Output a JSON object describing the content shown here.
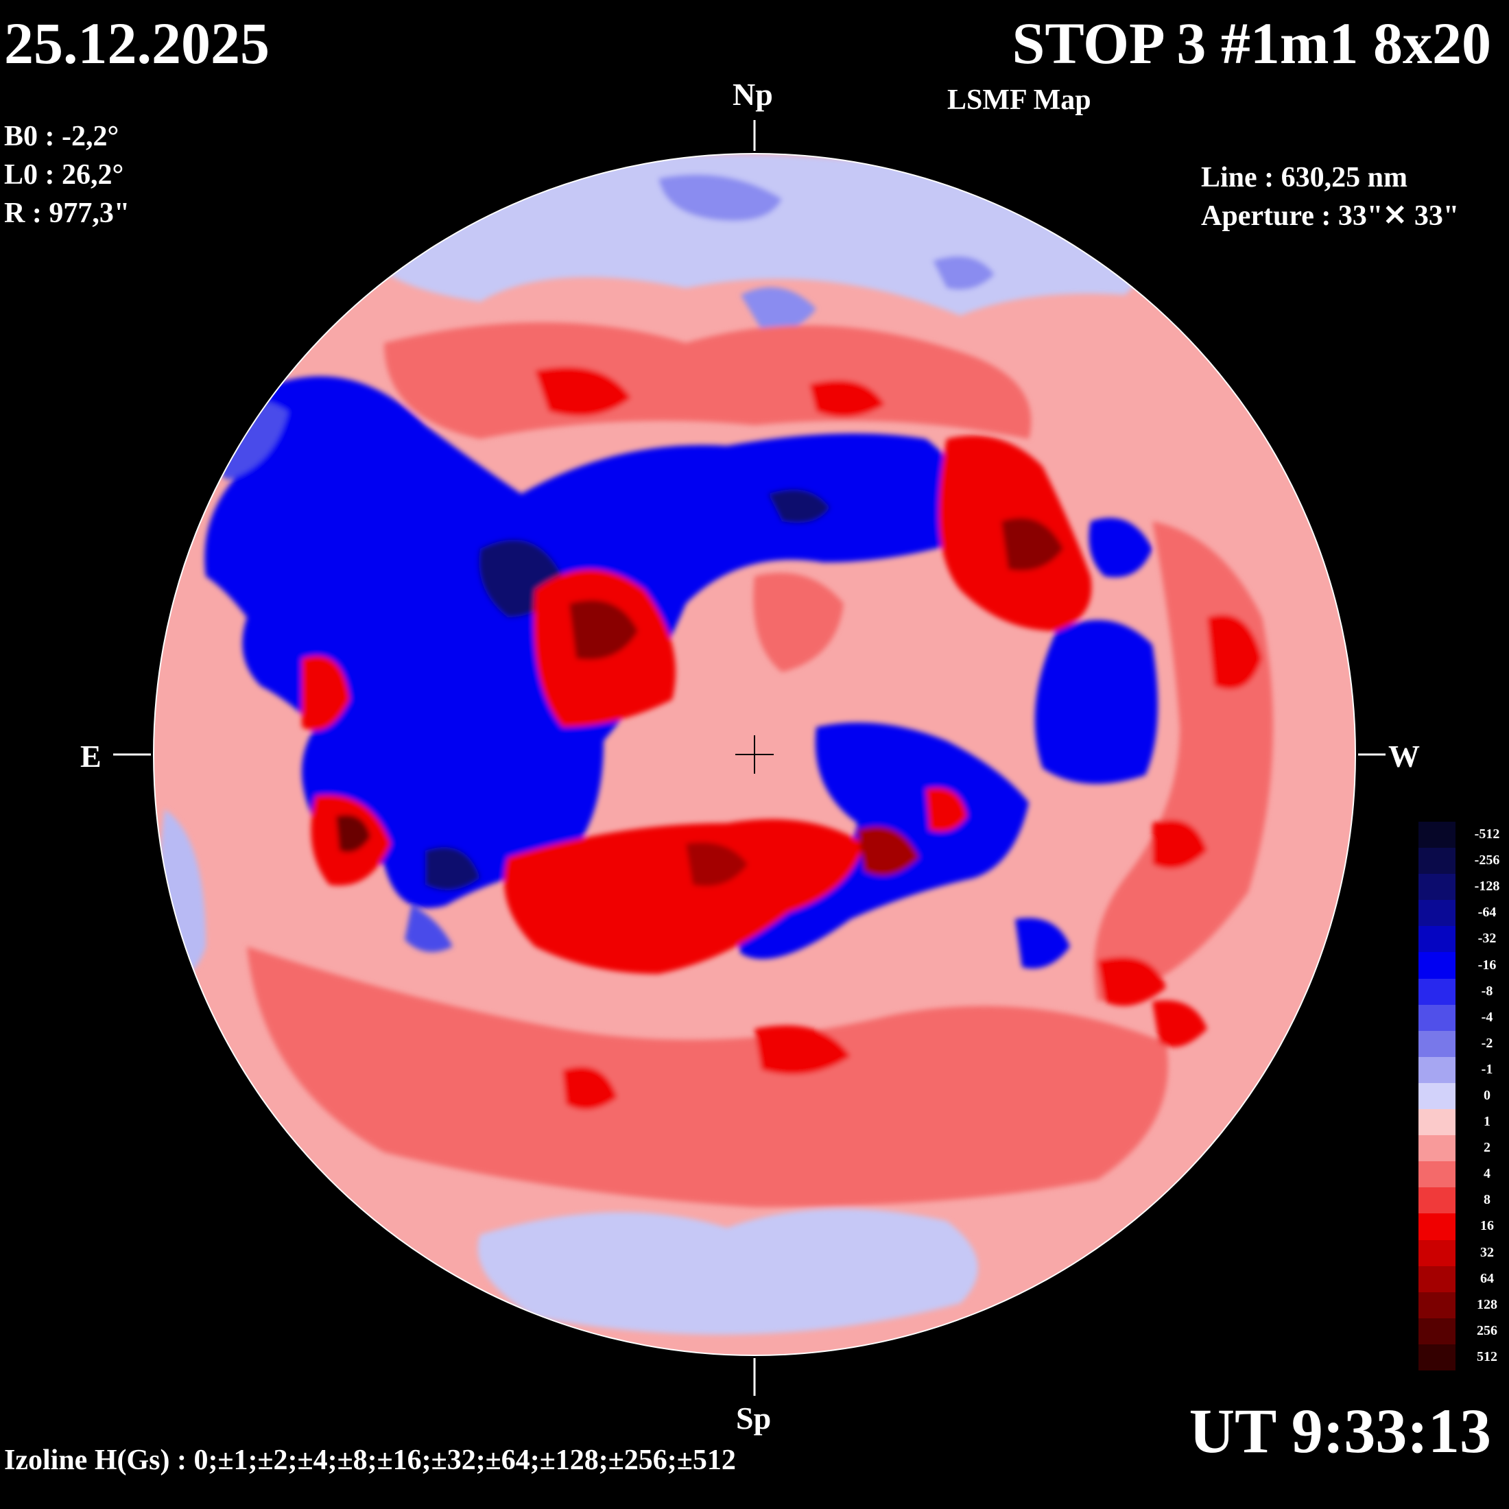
{
  "header": {
    "date": "25.12.2025",
    "title": "STOP 3 #1m1 8x20",
    "subtitle": "LSMF  Map"
  },
  "parameters": {
    "b0": "B0 : -2,2°",
    "l0": "L0 : 26,2°",
    "r": "R  : 977,3\""
  },
  "instrument": {
    "line": "Line :  630,25 nm",
    "aperture": "Aperture : 33\"✕ 33\""
  },
  "directions": {
    "north": "Np",
    "south": "Sp",
    "east": "E",
    "west": "W"
  },
  "time": "UT 9:33:13",
  "isolines": "Izoline H(Gs) : 0;±1;±2;±4;±8;±16;±32;±64;±128;±256;±512",
  "colorbar": {
    "labels": [
      "-512",
      "-256",
      "-128",
      "-64",
      "-32",
      "-16",
      "-8",
      "-4",
      "-2",
      "-1",
      "0",
      "1",
      "2",
      "4",
      "8",
      "16",
      "32",
      "64",
      "128",
      "256",
      "512"
    ],
    "colors": [
      "#060628",
      "#0a0a4a",
      "#0c0c6e",
      "#0a0a96",
      "#0505c2",
      "#0000f2",
      "#2828ee",
      "#5050ea",
      "#7878ea",
      "#a6a6f2",
      "#d2d2fa",
      "#fbcaca",
      "#f89a9a",
      "#f46a6a",
      "#f03a3a",
      "#f00000",
      "#cc0000",
      "#a40000",
      "#7c0000",
      "#560000",
      "#340000"
    ]
  },
  "map_colors": {
    "blue_weak": "#c6c8f6",
    "blue_mid": "#6e70ee",
    "blue_strong": "#0000f2",
    "blue_deep": "#0a0a78",
    "red_weak": "#fbcaca",
    "red_mid": "#f46a6a",
    "red_strong": "#f00000",
    "red_deep": "#8a0000"
  }
}
